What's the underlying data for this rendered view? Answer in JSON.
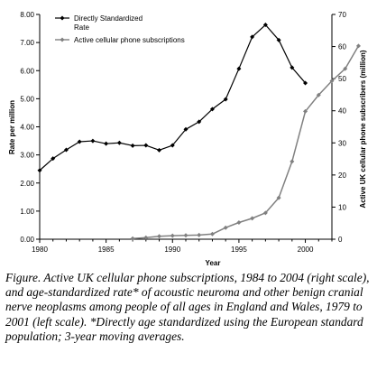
{
  "chart_data": {
    "type": "line",
    "x_label": "Year",
    "y_left_label": "Rate per million",
    "y_right_label": "Active UK cellular phone subscribers (million)",
    "x_range": [
      1980,
      2002
    ],
    "x_ticks": [
      1980,
      1985,
      1990,
      1995,
      2000
    ],
    "y_left_range": [
      0,
      8
    ],
    "y_left_ticks": [
      "0.00",
      "1.00",
      "2.00",
      "3.00",
      "4.00",
      "5.00",
      "6.00",
      "7.00",
      "8.00"
    ],
    "y_right_range": [
      0,
      70
    ],
    "y_right_ticks": [
      "0",
      "10",
      "20",
      "30",
      "40",
      "50",
      "60",
      "70"
    ],
    "grid": false,
    "legend_position": "top-left",
    "series": [
      {
        "name": "Directly Standardized Rate",
        "axis": "left",
        "color": "#000000",
        "marker": "diamond",
        "x": [
          1980,
          1981,
          1982,
          1983,
          1984,
          1985,
          1986,
          1987,
          1988,
          1989,
          1990,
          1991,
          1992,
          1993,
          1994,
          1995,
          1996,
          1997,
          1998,
          1999,
          2000
        ],
        "y": [
          2.45,
          2.87,
          3.18,
          3.47,
          3.5,
          3.4,
          3.43,
          3.33,
          3.34,
          3.17,
          3.34,
          3.91,
          4.18,
          4.63,
          4.98,
          6.07,
          7.2,
          7.63,
          7.09,
          6.11,
          5.56
        ]
      },
      {
        "name": "Active cellular phone subscriptions",
        "axis": "right",
        "color": "#808080",
        "marker": "diamond",
        "x": [
          1987,
          1988,
          1989,
          1990,
          1991,
          1992,
          1993,
          1994,
          1995,
          1996,
          1997,
          1998,
          1999,
          2000,
          2001,
          2002,
          2003,
          2004
        ],
        "y": [
          0.2,
          0.5,
          0.9,
          1.1,
          1.2,
          1.3,
          1.6,
          3.6,
          5.2,
          6.5,
          8.2,
          12.9,
          24.2,
          39.8,
          44.9,
          49.3,
          53.1,
          60.2
        ]
      }
    ]
  },
  "caption": {
    "text": "Figure. Active UK cellular phone subscriptions, 1984 to 2004 (right scale), and age-standardized rate* of acoustic neuroma and other benign cranial nerve neoplasms among people of all ages in England and Wales, 1979 to 2001 (left scale). *Directly age standardized using the European standard population; 3-year moving averages."
  }
}
